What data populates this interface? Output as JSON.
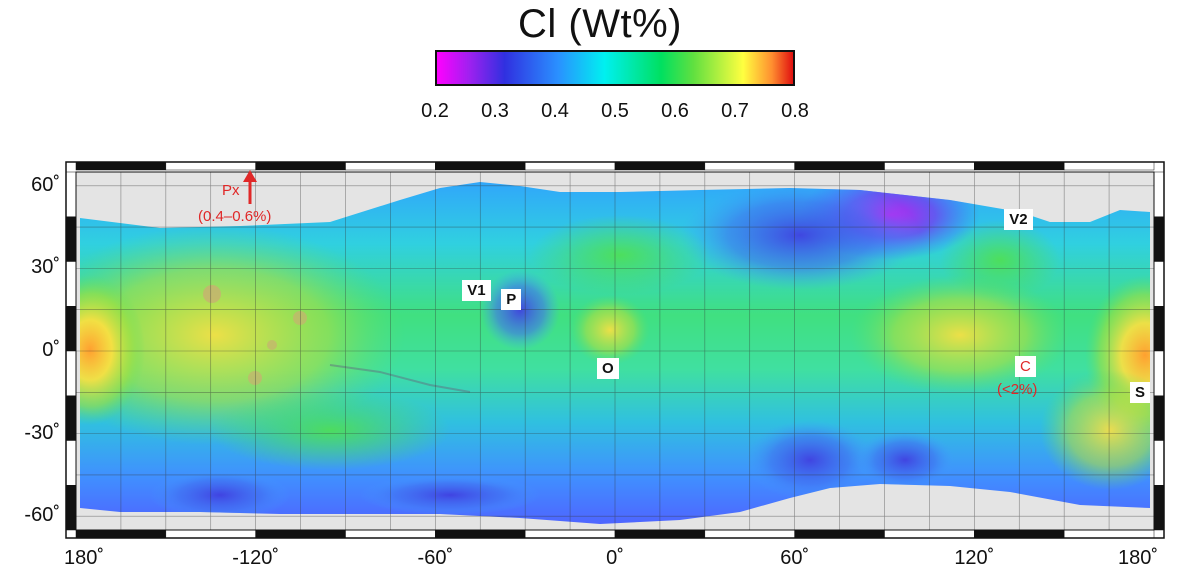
{
  "title": "Cl (Wt%)",
  "colorbar": {
    "ticks": [
      "0.2",
      "0.3",
      "0.4",
      "0.5",
      "0.6",
      "0.7",
      "0.8"
    ],
    "min": 0.2,
    "max": 0.8,
    "colors": [
      "#ff00ff",
      "#a020f0",
      "#3030e0",
      "#2a90ff",
      "#00f0f0",
      "#00e060",
      "#60e040",
      "#ffff40",
      "#ff9030",
      "#e01010"
    ]
  },
  "axes": {
    "lat_ticks": [
      "60˚",
      "30˚",
      "0˚",
      "-30˚",
      "-60˚"
    ],
    "lat_values": [
      60,
      30,
      0,
      -30,
      -60
    ],
    "lon_ticks": [
      "180˚",
      "-120˚",
      "-60˚",
      "0˚",
      "60˚",
      "120˚",
      "180˚"
    ],
    "lon_values": [
      -180,
      -120,
      -60,
      0,
      60,
      120,
      180
    ],
    "lon_range": [
      -180,
      180
    ],
    "lat_range": [
      -60,
      60
    ]
  },
  "sites": [
    {
      "label": "V1",
      "lon": -47,
      "lat": 22
    },
    {
      "label": "P",
      "lon": -34,
      "lat": 19
    },
    {
      "label": "O",
      "lon": -2,
      "lat": -6
    },
    {
      "label": "V2",
      "lon": 134,
      "lat": 48
    },
    {
      "label": "S",
      "lon": 176,
      "lat": -15
    }
  ],
  "annotations": {
    "px_label": "Px",
    "px_range": "(0.4–0.6%)",
    "c_label": "C",
    "c_range": "(<2%)"
  }
}
